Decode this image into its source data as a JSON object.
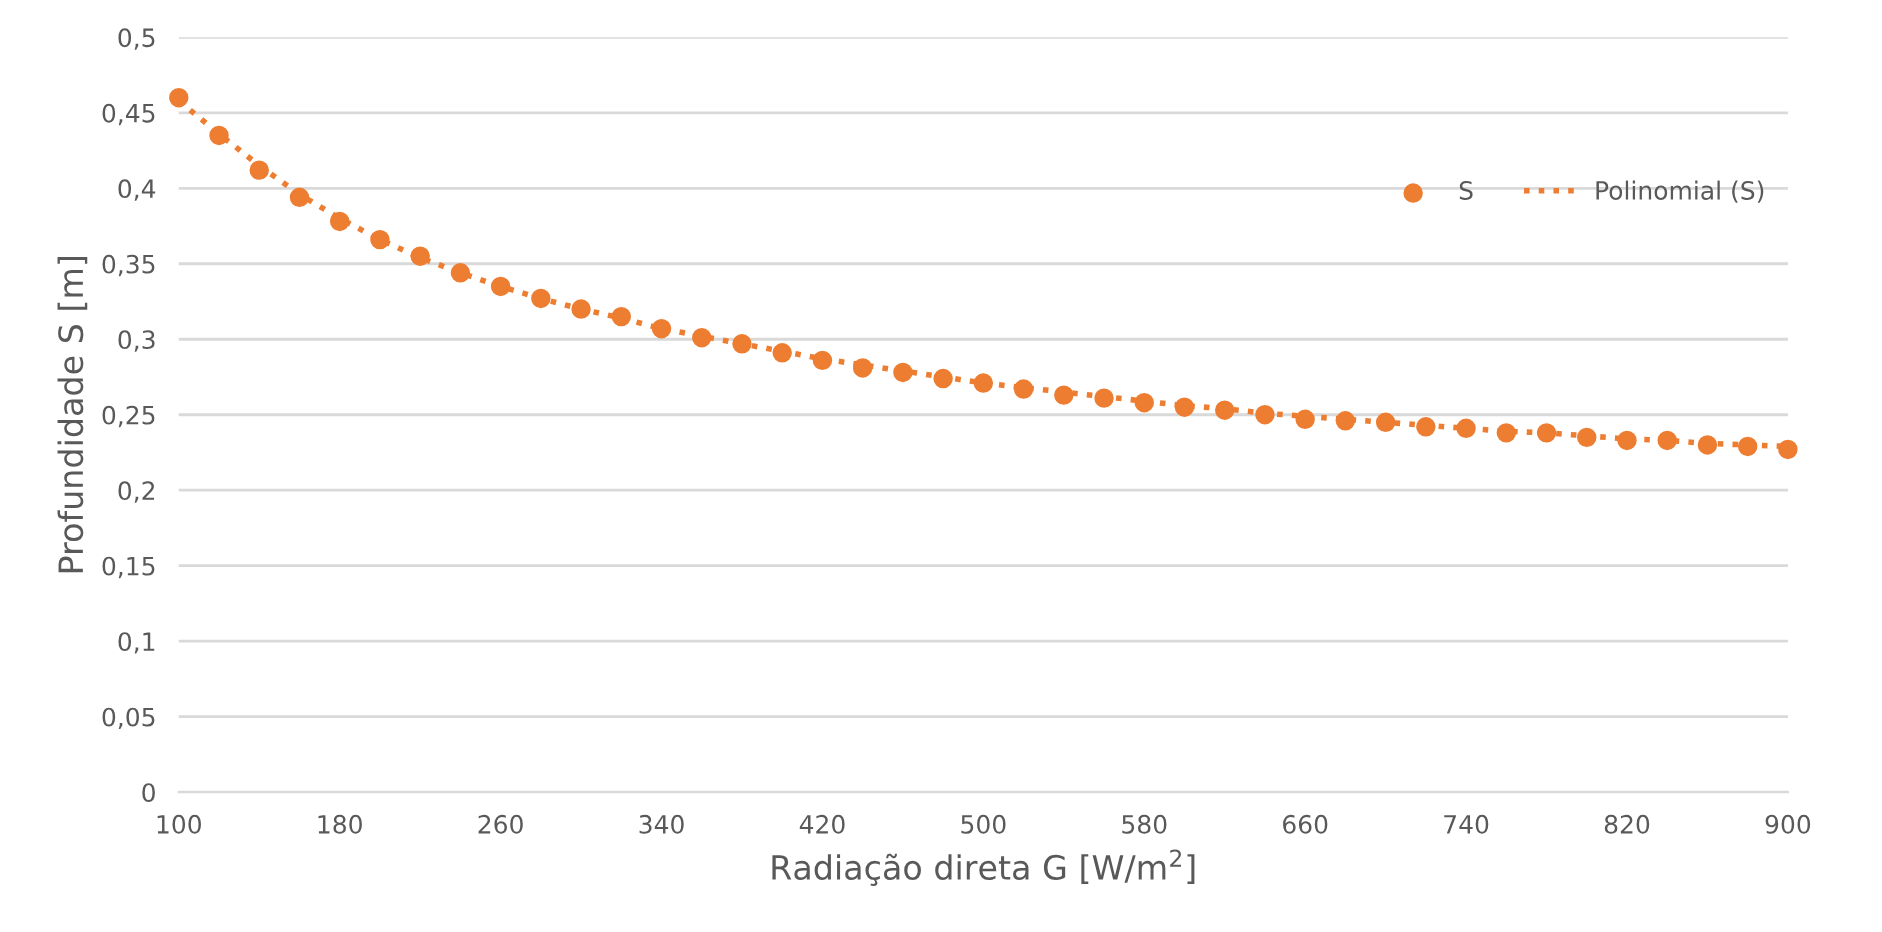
{
  "chart_data": {
    "type": "scatter",
    "xlabel": "Radiação direta G [W/m$^{2}$]",
    "ylabel": "Profundidade S [m]",
    "x": [
      100,
      120,
      140,
      160,
      180,
      200,
      220,
      240,
      260,
      280,
      300,
      320,
      340,
      360,
      380,
      400,
      420,
      440,
      460,
      480,
      500,
      520,
      540,
      560,
      580,
      600,
      620,
      640,
      660,
      680,
      700,
      720,
      740,
      760,
      780,
      800,
      820,
      840,
      860,
      880,
      900
    ],
    "series": [
      {
        "name": "S",
        "color": "#ed7d31",
        "marker": "circle",
        "values": [
          0.46,
          0.435,
          0.412,
          0.394,
          0.378,
          0.366,
          0.355,
          0.344,
          0.335,
          0.327,
          0.32,
          0.315,
          0.307,
          0.301,
          0.297,
          0.291,
          0.286,
          0.281,
          0.278,
          0.274,
          0.271,
          0.267,
          0.263,
          0.261,
          0.258,
          0.255,
          0.253,
          0.25,
          0.247,
          0.246,
          0.245,
          0.242,
          0.241,
          0.238,
          0.238,
          0.235,
          0.233,
          0.233,
          0.23,
          0.229,
          0.227
        ]
      },
      {
        "name": "Polinomial (S)",
        "type": "line",
        "color": "#ed7d31",
        "line_style": "dotted",
        "marker": "none",
        "values": [
          0.458,
          0.436,
          0.415,
          0.396,
          0.38,
          0.366,
          0.354,
          0.344,
          0.335,
          0.327,
          0.32,
          0.314,
          0.307,
          0.302,
          0.297,
          0.292,
          0.287,
          0.283,
          0.279,
          0.275,
          0.271,
          0.268,
          0.265,
          0.262,
          0.259,
          0.256,
          0.254,
          0.251,
          0.249,
          0.247,
          0.245,
          0.243,
          0.241,
          0.239,
          0.238,
          0.236,
          0.234,
          0.233,
          0.231,
          0.23,
          0.229
        ]
      }
    ],
    "xlim": [
      100,
      900
    ],
    "xticks": [
      100,
      180,
      260,
      340,
      420,
      500,
      580,
      660,
      740,
      820,
      900
    ],
    "ylim": [
      0,
      0.5
    ],
    "yticks": [
      {
        "value": 0,
        "label": "0"
      },
      {
        "value": 0.05,
        "label": "0,05"
      },
      {
        "value": 0.1,
        "label": "0,1"
      },
      {
        "value": 0.15,
        "label": "0,15"
      },
      {
        "value": 0.2,
        "label": "0,2"
      },
      {
        "value": 0.25,
        "label": "0,25"
      },
      {
        "value": 0.3,
        "label": "0,3"
      },
      {
        "value": 0.35,
        "label": "0,35"
      },
      {
        "value": 0.4,
        "label": "0,4"
      },
      {
        "value": 0.45,
        "label": "0,45"
      },
      {
        "value": 0.5,
        "label": "0,5"
      }
    ],
    "grid": "y",
    "legend": "top right"
  }
}
